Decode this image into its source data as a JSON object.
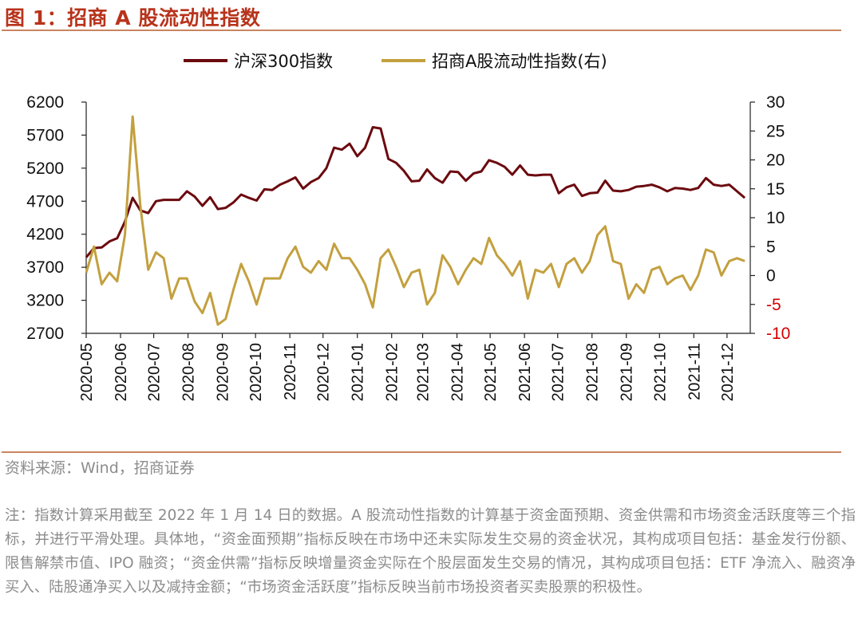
{
  "figure_title": "图 1：招商 A 股流动性指数",
  "source": "资料来源：Wind，招商证券",
  "footnote": "注：指数计算采用截至 2022 年 1 月 14 日的数据。A 股流动性指数的计算基于资金面预期、资金供需和市场资金活跃度等三个指标，并进行平滑处理。具体地，“资金面预期”指标反映在市场中还未实际发生交易的资金状况，其构成项目包括：基金发行份额、限售解禁市值、IPO 融资；“资金供需”指标反映增量资金实际在个股层面发生交易的情况，其构成项目包括：ETF 净流入、融资净买入、陆股通净买入以及减持金额；“市场资金活跃度”指标反映当前市场投资者买卖股票的积极性。",
  "colors": {
    "hs300": "#6b0a0f",
    "liquidity": "#c3a03f",
    "accent": "#b8331b",
    "negative": "#d40000"
  },
  "chart_data": {
    "type": "line",
    "x": [
      "2020-05-01",
      "2020-05-08",
      "2020-05-15",
      "2020-05-22",
      "2020-05-29",
      "2020-06-05",
      "2020-06-12",
      "2020-06-19",
      "2020-06-26",
      "2020-07-03",
      "2020-07-10",
      "2020-07-17",
      "2020-07-24",
      "2020-07-31",
      "2020-08-07",
      "2020-08-14",
      "2020-08-21",
      "2020-08-28",
      "2020-09-04",
      "2020-09-11",
      "2020-09-18",
      "2020-09-25",
      "2020-10-02",
      "2020-10-09",
      "2020-10-16",
      "2020-10-23",
      "2020-10-30",
      "2020-11-06",
      "2020-11-13",
      "2020-11-20",
      "2020-11-27",
      "2020-12-04",
      "2020-12-11",
      "2020-12-18",
      "2020-12-25",
      "2021-01-01",
      "2021-01-08",
      "2021-01-15",
      "2021-01-22",
      "2021-01-29",
      "2021-02-05",
      "2021-02-12",
      "2021-02-19",
      "2021-02-26",
      "2021-03-05",
      "2021-03-12",
      "2021-03-19",
      "2021-03-26",
      "2021-04-02",
      "2021-04-09",
      "2021-04-16",
      "2021-04-23",
      "2021-04-30",
      "2021-05-07",
      "2021-05-14",
      "2021-05-21",
      "2021-05-28",
      "2021-06-04",
      "2021-06-11",
      "2021-06-18",
      "2021-06-25",
      "2021-07-02",
      "2021-07-09",
      "2021-07-16",
      "2021-07-23",
      "2021-07-30",
      "2021-08-06",
      "2021-08-13",
      "2021-08-20",
      "2021-08-27",
      "2021-09-03",
      "2021-09-10",
      "2021-09-17",
      "2021-09-24",
      "2021-10-01",
      "2021-10-08",
      "2021-10-15",
      "2021-10-22",
      "2021-10-29",
      "2021-11-05",
      "2021-11-12",
      "2021-11-19",
      "2021-11-26",
      "2021-12-03",
      "2021-12-10",
      "2021-12-17"
    ],
    "x_ticks": [
      "2020-05",
      "2020-06",
      "2020-07",
      "2020-08",
      "2020-09",
      "2020-10",
      "2020-11",
      "2020-12",
      "2021-01",
      "2021-02",
      "2021-03",
      "2021-04",
      "2021-05",
      "2021-06",
      "2021-07",
      "2021-08",
      "2021-09",
      "2021-10",
      "2021-11",
      "2021-12"
    ],
    "y_left": {
      "ticks": [
        "6200",
        "5700",
        "5200",
        "4700",
        "4200",
        "3700",
        "3200",
        "2700"
      ],
      "lim": [
        2700,
        6200
      ]
    },
    "y_right": {
      "ticks": [
        "30",
        "25",
        "20",
        "15",
        "10",
        "5",
        "0",
        "-5",
        "-10"
      ],
      "lim": [
        -10,
        30
      ]
    },
    "legend_position": "top-center",
    "grid": false,
    "series": [
      {
        "name": "沪深300指数",
        "axis": "left",
        "values": [
          3850,
          3990,
          4000,
          4090,
          4140,
          4390,
          4750,
          4560,
          4520,
          4700,
          4720,
          4720,
          4720,
          4850,
          4770,
          4630,
          4760,
          4580,
          4600,
          4680,
          4800,
          4750,
          4710,
          4880,
          4870,
          4950,
          5000,
          5060,
          4890,
          4990,
          5050,
          5200,
          5510,
          5480,
          5570,
          5380,
          5510,
          5820,
          5800,
          5340,
          5280,
          5160,
          5000,
          5010,
          5180,
          5050,
          4980,
          5150,
          5140,
          5010,
          5120,
          5150,
          5320,
          5280,
          5220,
          5100,
          5240,
          5100,
          5090,
          5100,
          5100,
          4820,
          4910,
          4950,
          4780,
          4820,
          4830,
          5010,
          4860,
          4850,
          4870,
          4920,
          4930,
          4950,
          4910,
          4850,
          4900,
          4890,
          4870,
          4900,
          5050,
          4950,
          4930,
          4950,
          4850,
          4750
        ]
      },
      {
        "name": "招商A股流动性指数(右)",
        "axis": "right",
        "values": [
          0.5,
          5.0,
          -1.5,
          0.5,
          -1.0,
          7.0,
          27.5,
          12.0,
          1.0,
          4.0,
          3.0,
          -4.0,
          -0.5,
          -0.5,
          -4.5,
          -6.5,
          -3.0,
          -8.5,
          -7.5,
          -2.5,
          2.0,
          -1.0,
          -5.0,
          -0.5,
          -0.5,
          -0.5,
          3.0,
          5.0,
          1.5,
          0.5,
          2.5,
          1.0,
          5.5,
          3.0,
          3.0,
          1.0,
          -1.5,
          -5.5,
          3.0,
          4.5,
          1.5,
          -2.0,
          0.5,
          1.0,
          -5.0,
          -3.0,
          3.5,
          1.5,
          -1.5,
          1.0,
          3.0,
          2.0,
          6.5,
          3.5,
          2.0,
          0.0,
          2.5,
          -4.0,
          1.0,
          0.5,
          2.0,
          -2.0,
          2.0,
          3.0,
          0.5,
          2.5,
          7.0,
          8.5,
          2.5,
          2.0,
          -4.0,
          -1.5,
          -3.0,
          1.0,
          1.5,
          -1.5,
          -0.5,
          0.0,
          -2.5,
          0.0,
          4.5,
          4.0,
          0.0,
          2.5,
          3.0,
          2.5
        ]
      }
    ]
  }
}
